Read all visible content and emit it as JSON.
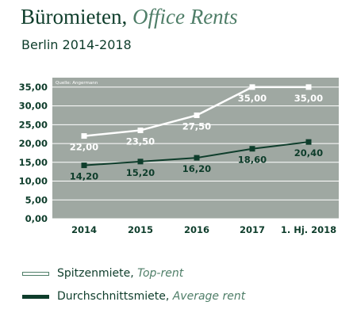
{
  "header": {
    "title_de": "Büromieten,",
    "title_en": "Office Rents",
    "subtitle": "Berlin 2014-2018"
  },
  "legend": {
    "top": {
      "de": "Spitzenmiete,",
      "en": "Top-rent"
    },
    "avg": {
      "de": "Durchschnittsmiete,",
      "en": "Average rent"
    }
  },
  "colors": {
    "plot_bg": "#9fa8a2",
    "grid": "#ffffff",
    "top_line": "#ffffff",
    "avg_line": "#0e3d2b",
    "text": "#0e3d2b",
    "accent": "#4f7e68"
  },
  "chart_data": {
    "type": "line",
    "source": "Quelle: Angermann",
    "categories": [
      "2014",
      "2015",
      "2016",
      "2017",
      "1. Hj. 2018"
    ],
    "yticks": [
      "0,00",
      "5,00",
      "10,00",
      "15,00",
      "20,00",
      "25,00",
      "30,00",
      "35,00"
    ],
    "ylim": [
      0,
      37.5
    ],
    "grid": true,
    "legend_position": "bottom",
    "series": [
      {
        "name": "Spitzenmiete, Top-rent",
        "key": "top",
        "values": [
          22.0,
          23.5,
          27.5,
          35.0,
          35.0
        ],
        "labels": [
          "22,00",
          "23,50",
          "27,50",
          "35,00",
          "35,00"
        ]
      },
      {
        "name": "Durchschnittsmiete, Average rent",
        "key": "avg",
        "values": [
          14.2,
          15.2,
          16.2,
          18.6,
          20.4
        ],
        "labels": [
          "14,20",
          "15,20",
          "16,20",
          "18,60",
          "20,40"
        ]
      }
    ]
  }
}
